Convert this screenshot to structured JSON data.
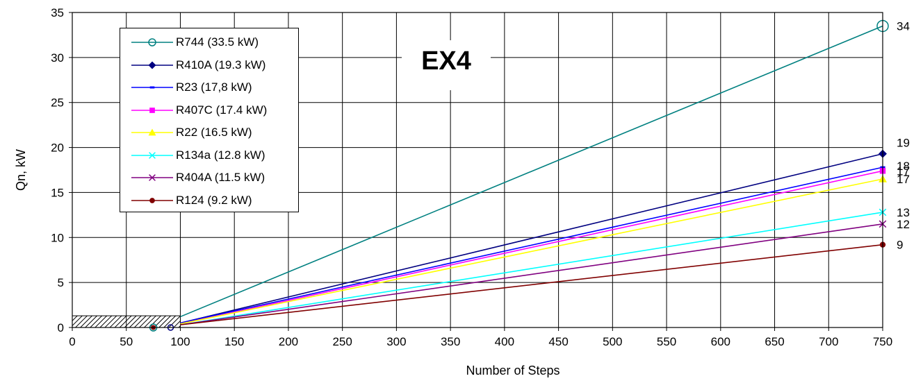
{
  "chart_data": {
    "type": "line",
    "title": "EX4",
    "xlabel": "Number of Steps",
    "ylabel": "Qn, kW",
    "xlim": [
      0,
      750
    ],
    "ylim": [
      0,
      35
    ],
    "x_ticks": [
      0,
      50,
      100,
      150,
      200,
      250,
      300,
      350,
      400,
      450,
      500,
      550,
      600,
      650,
      700,
      750
    ],
    "y_ticks": [
      0,
      5,
      10,
      15,
      20,
      25,
      30,
      35
    ],
    "grid": true,
    "legend_position": "top-left",
    "shaded_region": {
      "x": [
        0,
        100
      ],
      "y": [
        0,
        1.3
      ],
      "pattern": "diagonal-hatch"
    },
    "series": [
      {
        "name": "R744 (33.5 kW)",
        "color": "#008080",
        "marker": "open-circle",
        "x": [
          100,
          750
        ],
        "y": [
          1.2,
          33.5
        ],
        "end_label": "34"
      },
      {
        "name": "R410A (19.3 kW)",
        "color": "#000080",
        "marker": "diamond",
        "x": [
          100,
          750
        ],
        "y": [
          0.5,
          19.3
        ],
        "end_label": "19"
      },
      {
        "name": "R23 (17,8 kW)",
        "color": "#0000FF",
        "marker": "dash",
        "x": [
          100,
          750
        ],
        "y": [
          0.5,
          17.8
        ],
        "end_label": "18"
      },
      {
        "name": "R407C (17.4 kW)",
        "color": "#FF00FF",
        "marker": "square",
        "x": [
          100,
          750
        ],
        "y": [
          0.4,
          17.4
        ],
        "end_label": "17"
      },
      {
        "name": "R22 (16.5 kW)",
        "color": "#FFFF00",
        "marker": "triangle",
        "x": [
          100,
          750
        ],
        "y": [
          0.4,
          16.5
        ],
        "end_label": "17"
      },
      {
        "name": "R134a (12.8 kW)",
        "color": "#00FFFF",
        "marker": "x",
        "x": [
          100,
          750
        ],
        "y": [
          0.3,
          12.8
        ],
        "end_label": "13"
      },
      {
        "name": "R404A (11.5 kW)",
        "color": "#800080",
        "marker": "x",
        "x": [
          100,
          750
        ],
        "y": [
          0.3,
          11.5
        ],
        "end_label": "12"
      },
      {
        "name": "R124 (9.2 kW)",
        "color": "#800000",
        "marker": "filled-circle",
        "x": [
          100,
          750
        ],
        "y": [
          0.3,
          9.2
        ],
        "end_label": "9"
      }
    ]
  }
}
